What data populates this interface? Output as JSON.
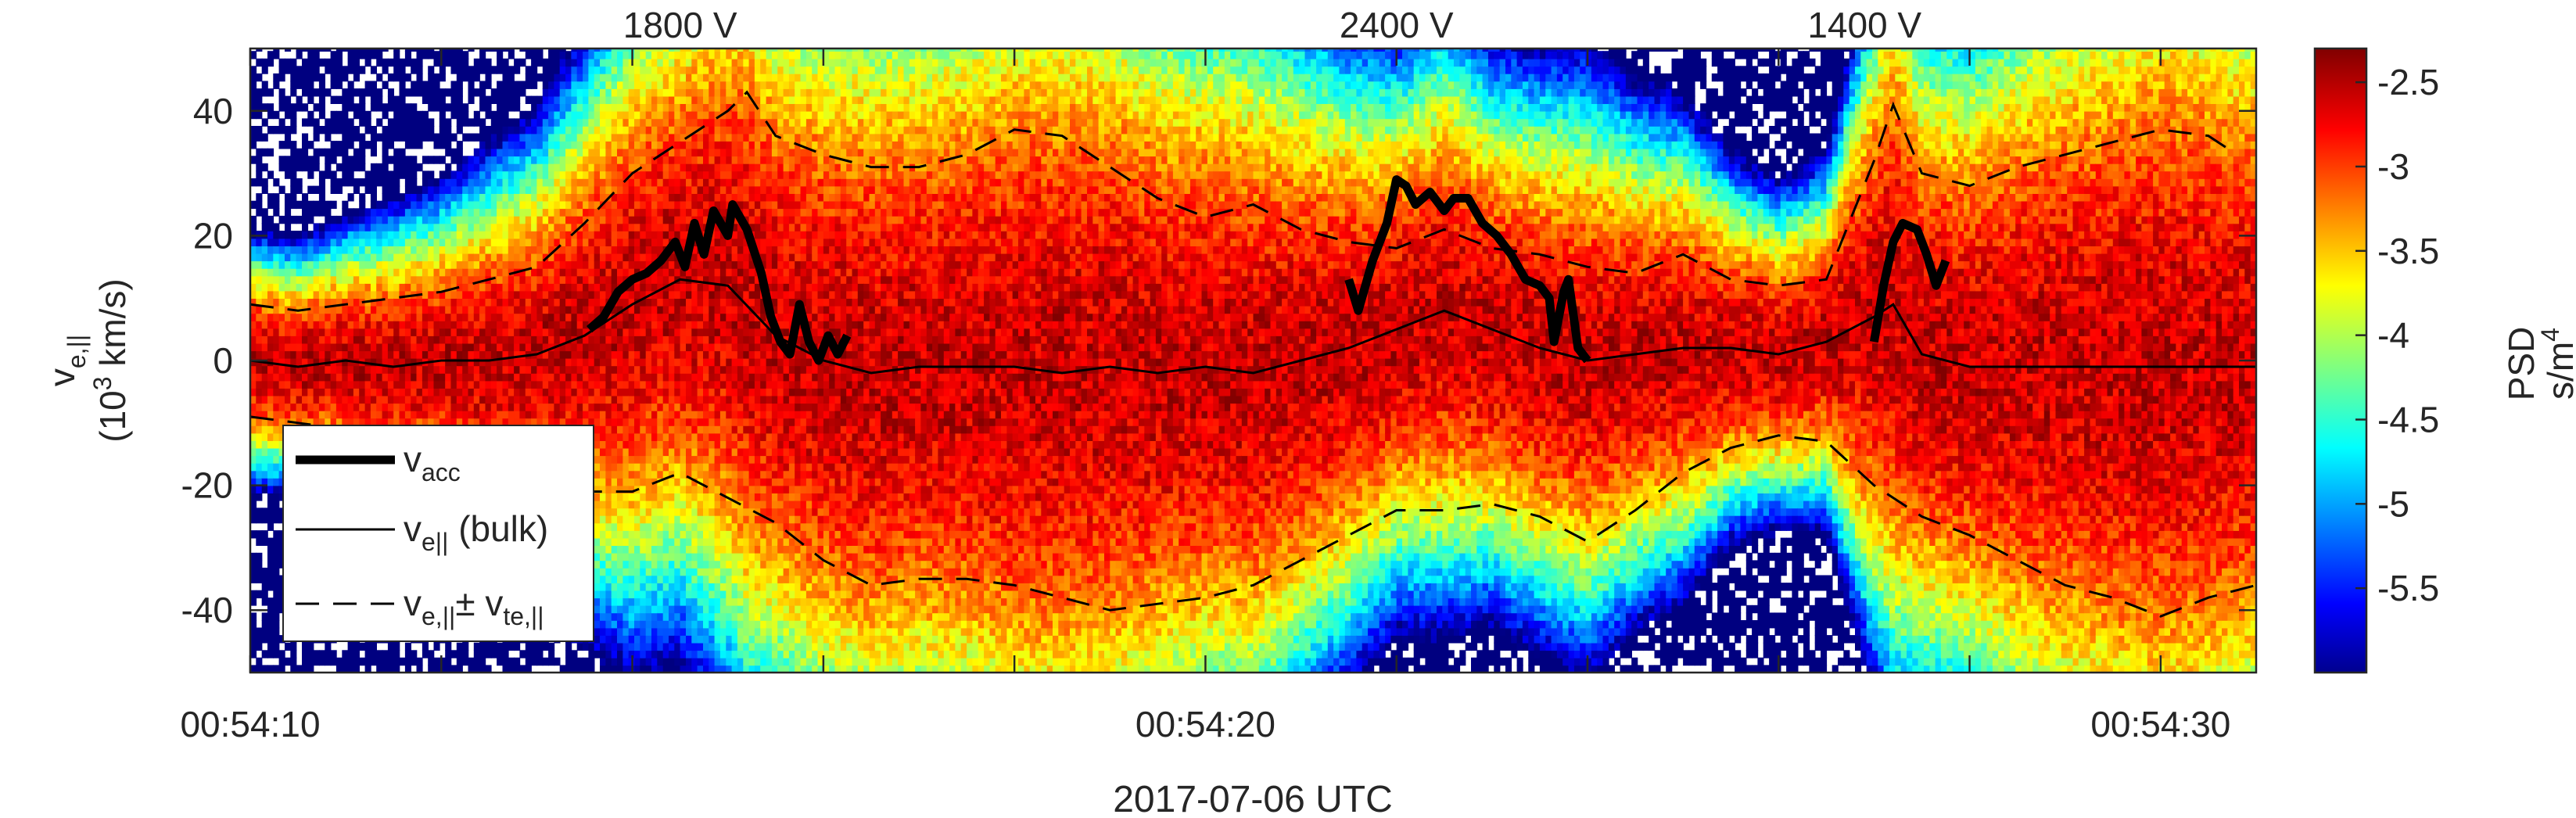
{
  "chart_data": {
    "type": "heatmap",
    "xlabel": "2017-07-06 UTC",
    "ylabel_main": "v",
    "ylabel_sub": "e,||",
    "ylabel_units_pre": "(10",
    "ylabel_units_exp": "3",
    "ylabel_units_post": " km/s)",
    "x_range_seconds": [
      10,
      31
    ],
    "ylim": [
      -50,
      50
    ],
    "x_ticks": [
      {
        "t": 10,
        "label": "00:54:10"
      },
      {
        "t": 12,
        "label": ""
      },
      {
        "t": 14,
        "label": ""
      },
      {
        "t": 16,
        "label": ""
      },
      {
        "t": 18,
        "label": ""
      },
      {
        "t": 20,
        "label": "00:54:20"
      },
      {
        "t": 22,
        "label": ""
      },
      {
        "t": 24,
        "label": ""
      },
      {
        "t": 26,
        "label": ""
      },
      {
        "t": 28,
        "label": ""
      },
      {
        "t": 30,
        "label": "00:54:30"
      }
    ],
    "y_ticks": [
      {
        "v": 40,
        "label": "40"
      },
      {
        "v": 20,
        "label": "20"
      },
      {
        "v": 0,
        "label": "0"
      },
      {
        "v": -20,
        "label": "-20"
      },
      {
        "v": -40,
        "label": "-40"
      }
    ],
    "top_annotations": [
      {
        "t": 14.5,
        "label": "1800 V"
      },
      {
        "t": 22.0,
        "label": "2400 V"
      },
      {
        "t": 26.9,
        "label": "1400 V"
      }
    ],
    "colorbar": {
      "label": "PSD",
      "units_pre": "s/m",
      "units_exp": "4",
      "range": [
        -6.0,
        -2.3
      ],
      "ticks": [
        {
          "v": -2.5,
          "label": "-2.5"
        },
        {
          "v": -3.0,
          "label": "-3"
        },
        {
          "v": -3.5,
          "label": "-3.5"
        },
        {
          "v": -4.0,
          "label": "-4"
        },
        {
          "v": -4.5,
          "label": "-4.5"
        },
        {
          "v": -5.0,
          "label": "-5"
        },
        {
          "v": -5.5,
          "label": "-5.5"
        }
      ]
    },
    "legend": {
      "placement": "bottom-left",
      "entries": [
        {
          "key": "v_acc",
          "main": "v",
          "sub": "acc",
          "tail": "",
          "style": "thick"
        },
        {
          "key": "v_bulk",
          "main": "v",
          "sub": "e||",
          "tail": " (bulk)",
          "style": "thin"
        },
        {
          "key": "v_therm",
          "main": "v",
          "sub": "e,||",
          "mid": "± v",
          "sub2": "te,||",
          "style": "dashed"
        }
      ]
    },
    "series": {
      "v_acc": [
        [
          [
            13.55,
            5
          ],
          [
            13.7,
            7
          ],
          [
            13.85,
            11
          ],
          [
            14.0,
            13
          ],
          [
            14.15,
            14
          ],
          [
            14.3,
            16
          ],
          [
            14.45,
            19
          ],
          [
            14.55,
            15
          ],
          [
            14.65,
            22
          ],
          [
            14.75,
            17
          ],
          [
            14.85,
            24
          ],
          [
            15.0,
            20
          ],
          [
            15.05,
            25
          ],
          [
            15.2,
            21
          ],
          [
            15.35,
            14
          ],
          [
            15.45,
            7
          ],
          [
            15.55,
            3
          ],
          [
            15.65,
            1
          ],
          [
            15.75,
            9
          ],
          [
            15.85,
            3
          ],
          [
            15.95,
            0
          ],
          [
            16.05,
            4
          ],
          [
            16.15,
            1
          ],
          [
            16.25,
            4
          ]
        ],
        [
          [
            21.5,
            13
          ],
          [
            21.6,
            8
          ],
          [
            21.75,
            16
          ],
          [
            21.9,
            22
          ],
          [
            22.0,
            29
          ],
          [
            22.1,
            28
          ],
          [
            22.2,
            25
          ],
          [
            22.35,
            27
          ],
          [
            22.5,
            24
          ],
          [
            22.6,
            26
          ],
          [
            22.75,
            26
          ],
          [
            22.9,
            22
          ],
          [
            23.05,
            20
          ],
          [
            23.2,
            17
          ],
          [
            23.35,
            13
          ],
          [
            23.5,
            12
          ],
          [
            23.6,
            10
          ],
          [
            23.65,
            3
          ],
          [
            23.75,
            11
          ],
          [
            23.8,
            13
          ],
          [
            23.9,
            2
          ],
          [
            24.0,
            0
          ]
        ],
        [
          [
            27.0,
            3
          ],
          [
            27.1,
            12
          ],
          [
            27.2,
            19
          ],
          [
            27.3,
            22
          ],
          [
            27.45,
            21
          ],
          [
            27.55,
            17
          ],
          [
            27.65,
            12
          ],
          [
            27.75,
            16
          ]
        ]
      ],
      "v_bulk": [
        [
          10.0,
          0
        ],
        [
          10.5,
          -1
        ],
        [
          11.0,
          0
        ],
        [
          11.5,
          -1
        ],
        [
          12.0,
          0
        ],
        [
          12.5,
          0
        ],
        [
          13.0,
          1
        ],
        [
          13.5,
          4
        ],
        [
          14.0,
          9
        ],
        [
          14.5,
          13
        ],
        [
          15.0,
          12
        ],
        [
          15.5,
          4
        ],
        [
          16.0,
          0
        ],
        [
          16.5,
          -2
        ],
        [
          17.0,
          -1
        ],
        [
          17.5,
          -1
        ],
        [
          18.0,
          -1
        ],
        [
          18.5,
          -2
        ],
        [
          19.0,
          -1
        ],
        [
          19.5,
          -2
        ],
        [
          20.0,
          -1
        ],
        [
          20.5,
          -2
        ],
        [
          21.0,
          0
        ],
        [
          21.5,
          2
        ],
        [
          22.0,
          5
        ],
        [
          22.5,
          8
        ],
        [
          23.0,
          5
        ],
        [
          23.5,
          2
        ],
        [
          24.0,
          0
        ],
        [
          24.5,
          1
        ],
        [
          25.0,
          2
        ],
        [
          25.5,
          2
        ],
        [
          26.0,
          1
        ],
        [
          26.5,
          3
        ],
        [
          27.0,
          7
        ],
        [
          27.2,
          9
        ],
        [
          27.5,
          1
        ],
        [
          28.0,
          -1
        ],
        [
          28.5,
          -1
        ],
        [
          29.0,
          -1
        ],
        [
          29.5,
          -1
        ],
        [
          30.0,
          -1
        ],
        [
          30.5,
          -1
        ],
        [
          31.0,
          -1
        ]
      ],
      "v_upper": [
        [
          10.0,
          9
        ],
        [
          10.5,
          8
        ],
        [
          11.0,
          9
        ],
        [
          11.5,
          10
        ],
        [
          12.0,
          11
        ],
        [
          12.5,
          13
        ],
        [
          13.0,
          15
        ],
        [
          13.5,
          22
        ],
        [
          14.0,
          30
        ],
        [
          14.5,
          35
        ],
        [
          15.0,
          40
        ],
        [
          15.2,
          43
        ],
        [
          15.5,
          36
        ],
        [
          16.0,
          33
        ],
        [
          16.5,
          31
        ],
        [
          17.0,
          31
        ],
        [
          17.5,
          33
        ],
        [
          18.0,
          37
        ],
        [
          18.5,
          36
        ],
        [
          19.0,
          31
        ],
        [
          19.5,
          26
        ],
        [
          20.0,
          23
        ],
        [
          20.5,
          25
        ],
        [
          21.0,
          21
        ],
        [
          21.5,
          19
        ],
        [
          22.0,
          18
        ],
        [
          22.5,
          21
        ],
        [
          23.0,
          18
        ],
        [
          23.5,
          17
        ],
        [
          24.0,
          15
        ],
        [
          24.5,
          14
        ],
        [
          25.0,
          17
        ],
        [
          25.5,
          13
        ],
        [
          26.0,
          12
        ],
        [
          26.5,
          13
        ],
        [
          27.0,
          32
        ],
        [
          27.2,
          41
        ],
        [
          27.5,
          30
        ],
        [
          28.0,
          28
        ],
        [
          28.5,
          31
        ],
        [
          29.0,
          33
        ],
        [
          29.5,
          35
        ],
        [
          30.0,
          37
        ],
        [
          30.5,
          36
        ],
        [
          30.8,
          33
        ]
      ],
      "v_lower": [
        [
          10.0,
          -9
        ],
        [
          10.5,
          -10
        ],
        [
          11.0,
          -11
        ],
        [
          11.5,
          -13
        ],
        [
          12.0,
          -14
        ],
        [
          12.5,
          -17
        ],
        [
          13.0,
          -19
        ],
        [
          13.5,
          -21
        ],
        [
          14.0,
          -21
        ],
        [
          14.5,
          -18
        ],
        [
          15.0,
          -22
        ],
        [
          15.5,
          -26
        ],
        [
          16.0,
          -32
        ],
        [
          16.5,
          -36
        ],
        [
          17.0,
          -35
        ],
        [
          17.5,
          -35
        ],
        [
          18.0,
          -36
        ],
        [
          18.5,
          -38
        ],
        [
          19.0,
          -40
        ],
        [
          19.5,
          -39
        ],
        [
          20.0,
          -38
        ],
        [
          20.5,
          -36
        ],
        [
          21.0,
          -32
        ],
        [
          21.5,
          -28
        ],
        [
          22.0,
          -24
        ],
        [
          22.5,
          -24
        ],
        [
          23.0,
          -23
        ],
        [
          23.5,
          -25
        ],
        [
          24.0,
          -29
        ],
        [
          24.5,
          -24
        ],
        [
          25.0,
          -18
        ],
        [
          25.5,
          -14
        ],
        [
          26.0,
          -12
        ],
        [
          26.5,
          -13
        ],
        [
          27.0,
          -20
        ],
        [
          27.5,
          -25
        ],
        [
          28.0,
          -28
        ],
        [
          28.5,
          -32
        ],
        [
          29.0,
          -36
        ],
        [
          29.5,
          -38
        ],
        [
          30.0,
          -41
        ],
        [
          30.5,
          -38
        ],
        [
          31.0,
          -36
        ]
      ]
    }
  }
}
